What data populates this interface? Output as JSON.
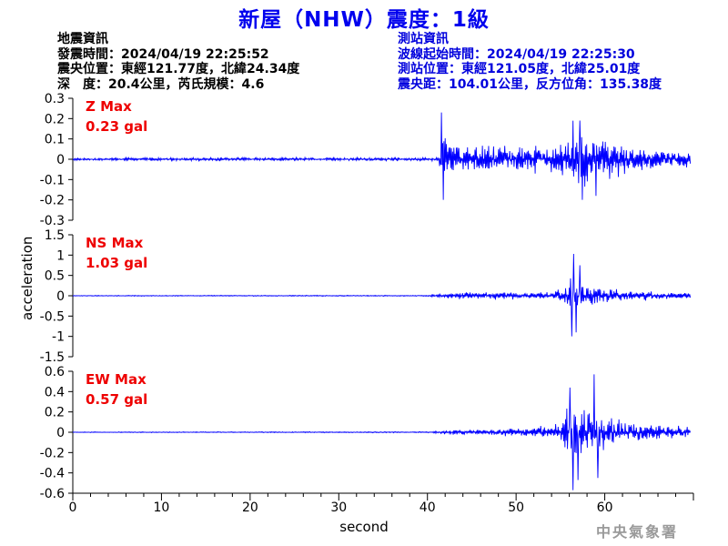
{
  "header": {
    "title": "新屋（NHW）震度：1級"
  },
  "earthquake_info": {
    "heading": "地震資訊",
    "origin_time": "發震時間：2024/04/19 22:25:52",
    "epicenter": "震央位置：東經121.77度，北緯24.34度",
    "depth_magnitude": "深　度：20.4公里，芮氏規模：4.6"
  },
  "station_info": {
    "heading": "測站資訊",
    "wave_start": "波線起始時間：2024/04/19 22:25:30",
    "station_location": "測站位置：東經121.05度，北緯25.01度",
    "distance": "震央距：104.01公里，反方位角：135.38度"
  },
  "footer": {
    "watermark": "中央氣象署"
  },
  "colors": {
    "trace": "#0000ff",
    "title": "#0000ee",
    "max_label": "#ee0000",
    "station_text": "#0000dd",
    "watermark": "#9a9a9a"
  },
  "chart_data": {
    "type": "line",
    "xlabel": "second",
    "ylabel": "acceleration",
    "xlim": [
      0,
      70
    ],
    "xticks": [
      "0",
      "10",
      "20",
      "30",
      "40",
      "50",
      "60"
    ],
    "xtick_values": [
      0,
      10,
      20,
      30,
      40,
      50,
      60
    ],
    "panels": [
      {
        "name": "Z Max",
        "max_label": "Z Max",
        "max_value": "0.23 gal",
        "ylim": [
          -0.3,
          0.3
        ],
        "yticks": [
          0.3,
          0.2,
          0.1,
          0,
          -0.1,
          -0.2,
          -0.3
        ],
        "ytick_labels": [
          "0.3",
          "0.2",
          "0.1",
          "0",
          "-0.1",
          "-0.2",
          "-0.3"
        ],
        "envelope": [
          [
            0,
            0.008
          ],
          [
            40,
            0.009
          ],
          [
            41.3,
            0.01
          ],
          [
            41.6,
            0.2
          ],
          [
            42.2,
            0.12
          ],
          [
            44,
            0.06
          ],
          [
            46,
            0.08
          ],
          [
            48,
            0.07
          ],
          [
            50,
            0.08
          ],
          [
            52,
            0.09
          ],
          [
            54,
            0.07
          ],
          [
            55,
            0.11
          ],
          [
            56,
            0.1
          ],
          [
            57,
            0.15
          ],
          [
            58,
            0.13
          ],
          [
            60,
            0.11
          ],
          [
            62,
            0.08
          ],
          [
            64,
            0.06
          ],
          [
            66,
            0.05
          ],
          [
            68,
            0.04
          ],
          [
            69.5,
            0.04
          ]
        ],
        "peaks": [
          [
            41.6,
            0.23
          ],
          [
            41.8,
            -0.2
          ],
          [
            57.2,
            0.19
          ],
          [
            57.5,
            -0.2
          ],
          [
            56.4,
            0.19
          ],
          [
            59.0,
            -0.18
          ]
        ]
      },
      {
        "name": "NS Max",
        "max_label": "NS Max",
        "max_value": "1.03 gal",
        "ylim": [
          -1.5,
          1.5
        ],
        "yticks": [
          1.5,
          1,
          0.5,
          0,
          -0.5,
          -1,
          -1.5
        ],
        "ytick_labels": [
          "1.5",
          "1",
          "0.5",
          "0",
          "-0.5",
          "-1",
          "-1.5"
        ],
        "envelope": [
          [
            0,
            0.01
          ],
          [
            40,
            0.015
          ],
          [
            42,
            0.06
          ],
          [
            44,
            0.1
          ],
          [
            46,
            0.1
          ],
          [
            48,
            0.09
          ],
          [
            50,
            0.09
          ],
          [
            52,
            0.09
          ],
          [
            54,
            0.12
          ],
          [
            55,
            0.18
          ],
          [
            56,
            0.35
          ],
          [
            56.5,
            0.85
          ],
          [
            57,
            0.5
          ],
          [
            58,
            0.3
          ],
          [
            60,
            0.2
          ],
          [
            62,
            0.15
          ],
          [
            64,
            0.12
          ],
          [
            66,
            0.1
          ],
          [
            68,
            0.08
          ],
          [
            69.5,
            0.08
          ]
        ],
        "peaks": [
          [
            56.5,
            1.03
          ],
          [
            56.3,
            -1.0
          ],
          [
            56.8,
            -0.9
          ],
          [
            57.2,
            0.75
          ]
        ]
      },
      {
        "name": "EW Max",
        "max_label": "EW Max",
        "max_value": "0.57 gal",
        "ylim": [
          -0.6,
          0.6
        ],
        "yticks": [
          0.6,
          0.4,
          0.2,
          0,
          -0.2,
          -0.4,
          -0.6
        ],
        "ytick_labels": [
          "0.6",
          "0.4",
          "0.2",
          "0",
          "-0.2",
          "-0.4",
          "-0.6"
        ],
        "envelope": [
          [
            0,
            0.004
          ],
          [
            40,
            0.006
          ],
          [
            42,
            0.02
          ],
          [
            44,
            0.03
          ],
          [
            46,
            0.03
          ],
          [
            48,
            0.035
          ],
          [
            50,
            0.045
          ],
          [
            52,
            0.06
          ],
          [
            54,
            0.09
          ],
          [
            55,
            0.12
          ],
          [
            56,
            0.3
          ],
          [
            57,
            0.3
          ],
          [
            58,
            0.25
          ],
          [
            60,
            0.18
          ],
          [
            62,
            0.15
          ],
          [
            64,
            0.12
          ],
          [
            66,
            0.1
          ],
          [
            68,
            0.08
          ],
          [
            69.5,
            0.07
          ]
        ],
        "peaks": [
          [
            58.8,
            0.57
          ],
          [
            56.1,
            0.44
          ],
          [
            56.4,
            -0.57
          ],
          [
            57.0,
            -0.47
          ],
          [
            59.2,
            -0.45
          ]
        ]
      }
    ]
  }
}
